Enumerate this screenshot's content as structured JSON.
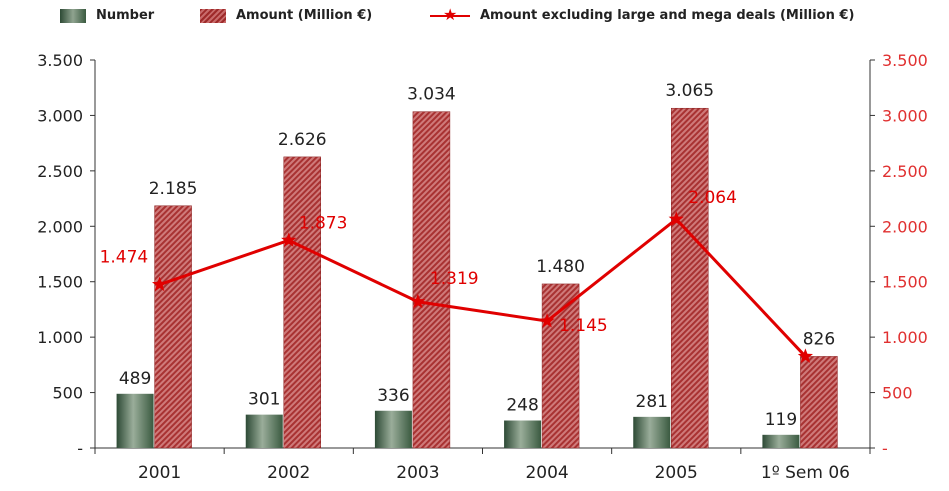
{
  "chart_data": {
    "type": "bar",
    "categories": [
      "2001",
      "2002",
      "2003",
      "2004",
      "2005",
      "1º Sem 06"
    ],
    "series": [
      {
        "name": "Number",
        "type": "bar",
        "axis": "left",
        "color": "#4a6a50",
        "values": [
          489,
          301,
          336,
          248,
          281,
          119
        ],
        "labels": [
          "489",
          "301",
          "336",
          "248",
          "281",
          "119"
        ]
      },
      {
        "name": "Amount (Million  €)",
        "type": "bar",
        "axis": "left",
        "color": "#b03a3a",
        "values": [
          2185,
          2626,
          3034,
          1480,
          3065,
          826
        ],
        "labels": [
          "2.185",
          "2.626",
          "3.034",
          "1.480",
          "3.065",
          "826"
        ]
      },
      {
        "name": "Amount excluding large and mega deals (Million €)",
        "type": "line",
        "axis": "right",
        "color": "#e00000",
        "values": [
          1474,
          1873,
          1319,
          1145,
          2064,
          826
        ],
        "labels": [
          "1.474",
          "1.873",
          "1.319",
          "1.145",
          "2.064",
          ""
        ]
      }
    ],
    "ylim": [
      0,
      3500
    ],
    "y2lim": [
      0,
      3500
    ],
    "yticks": [
      "-",
      "500",
      "1.000",
      "1.500",
      "2.000",
      "2.500",
      "3.000",
      "3.500"
    ],
    "y2ticks": [
      "-",
      "500",
      "1.000",
      "1.500",
      "2.000",
      "2.500",
      "3.000",
      "3.500"
    ],
    "legend_position": "top",
    "grid": false
  }
}
